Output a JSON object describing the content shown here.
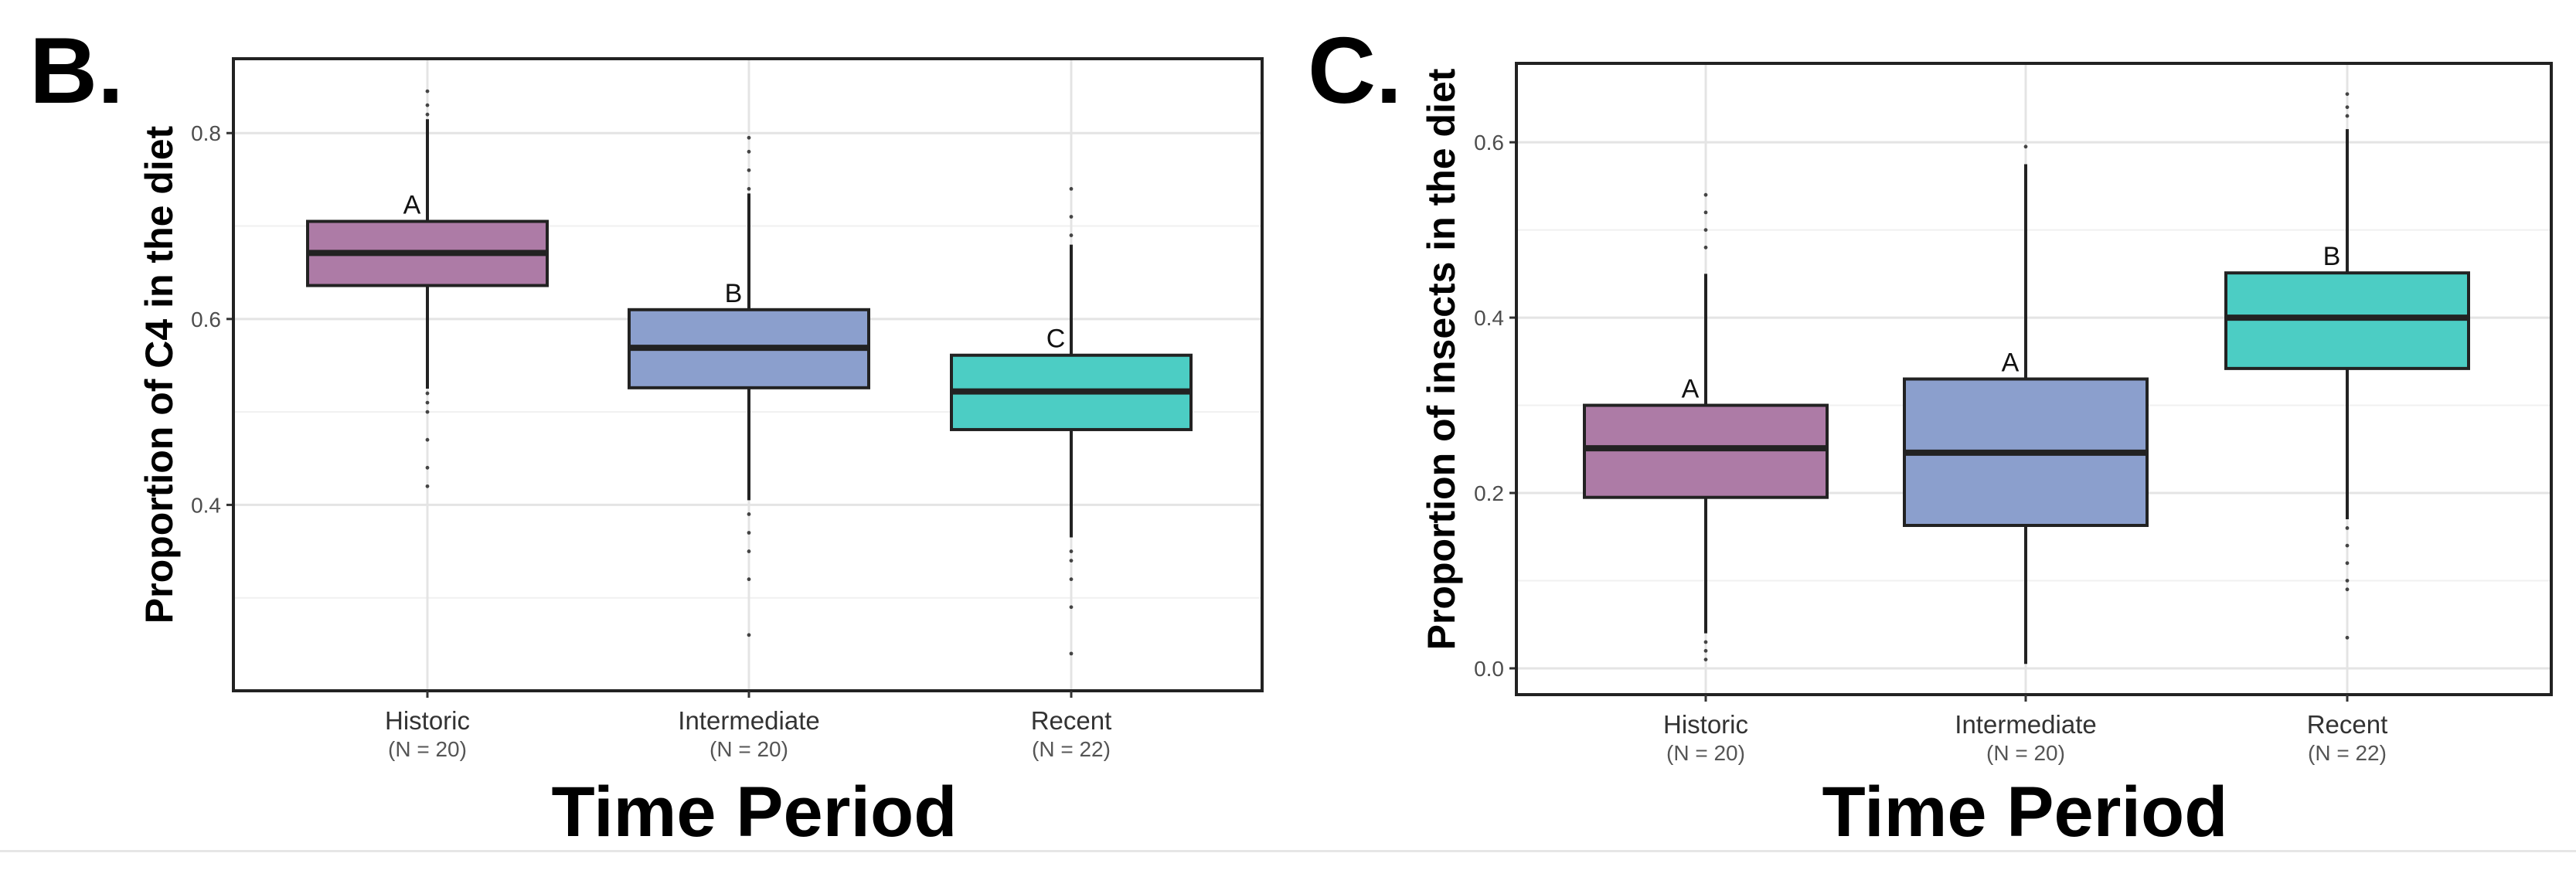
{
  "chart_data": [
    {
      "type": "boxplot",
      "panel_label": "B.",
      "title": "",
      "xlabel": "Time Period",
      "ylabel": "Proportion of C4 in the diet",
      "ylim": [
        0.2,
        0.88
      ],
      "yticks": [
        0.4,
        0.6,
        0.8
      ],
      "ytick_labels": [
        "0.4",
        "0.6",
        "0.8"
      ],
      "minor_gridlines": [
        0.3,
        0.5,
        0.7
      ],
      "grid": true,
      "categories": [
        "Historic",
        "Intermediate",
        "Recent"
      ],
      "sample_sizes": [
        "(N = 20)",
        "(N = 20)",
        "(N = 22)"
      ],
      "colors": [
        "#ad7ba6",
        "#8b9fcd",
        "#4ccdc4"
      ],
      "groups": [
        "A",
        "B",
        "C"
      ],
      "boxes": [
        {
          "q1": 0.636,
          "median": 0.671,
          "q3": 0.705,
          "whisker_low": 0.525,
          "whisker_high": 0.815,
          "outliers": [
            0.42,
            0.44,
            0.47,
            0.5,
            0.51,
            0.52,
            0.82,
            0.83,
            0.845
          ]
        },
        {
          "q1": 0.526,
          "median": 0.569,
          "q3": 0.61,
          "whisker_low": 0.405,
          "whisker_high": 0.735,
          "outliers": [
            0.26,
            0.32,
            0.35,
            0.37,
            0.39,
            0.74,
            0.76,
            0.78,
            0.795
          ]
        },
        {
          "q1": 0.481,
          "median": 0.522,
          "q3": 0.561,
          "whisker_low": 0.365,
          "whisker_high": 0.68,
          "outliers": [
            0.24,
            0.29,
            0.32,
            0.34,
            0.35,
            0.69,
            0.71,
            0.74
          ]
        }
      ]
    },
    {
      "type": "boxplot",
      "panel_label": "C.",
      "title": "",
      "xlabel": "Time Period",
      "ylabel": "Proportion of insects in the diet",
      "ylim": [
        -0.03,
        0.69
      ],
      "yticks": [
        0.0,
        0.2,
        0.4,
        0.6
      ],
      "ytick_labels": [
        "0.0",
        "0.2",
        "0.4",
        "0.6"
      ],
      "minor_gridlines": [
        0.1,
        0.3,
        0.5
      ],
      "grid": true,
      "categories": [
        "Historic",
        "Intermediate",
        "Recent"
      ],
      "sample_sizes": [
        "(N = 20)",
        "(N = 20)",
        "(N = 22)"
      ],
      "colors": [
        "#ad7ba6",
        "#8b9fcd",
        "#4ccdc4"
      ],
      "groups": [
        "A",
        "A",
        "B"
      ],
      "boxes": [
        {
          "q1": 0.195,
          "median": 0.251,
          "q3": 0.3,
          "whisker_low": 0.04,
          "whisker_high": 0.45,
          "outliers": [
            0.01,
            0.02,
            0.03,
            0.48,
            0.5,
            0.52,
            0.54
          ]
        },
        {
          "q1": 0.163,
          "median": 0.246,
          "q3": 0.33,
          "whisker_low": 0.005,
          "whisker_high": 0.575,
          "outliers": [
            0.595
          ]
        },
        {
          "q1": 0.342,
          "median": 0.4,
          "q3": 0.451,
          "whisker_low": 0.17,
          "whisker_high": 0.615,
          "outliers": [
            0.035,
            0.09,
            0.1,
            0.12,
            0.14,
            0.16,
            0.63,
            0.64,
            0.655
          ]
        }
      ]
    }
  ]
}
